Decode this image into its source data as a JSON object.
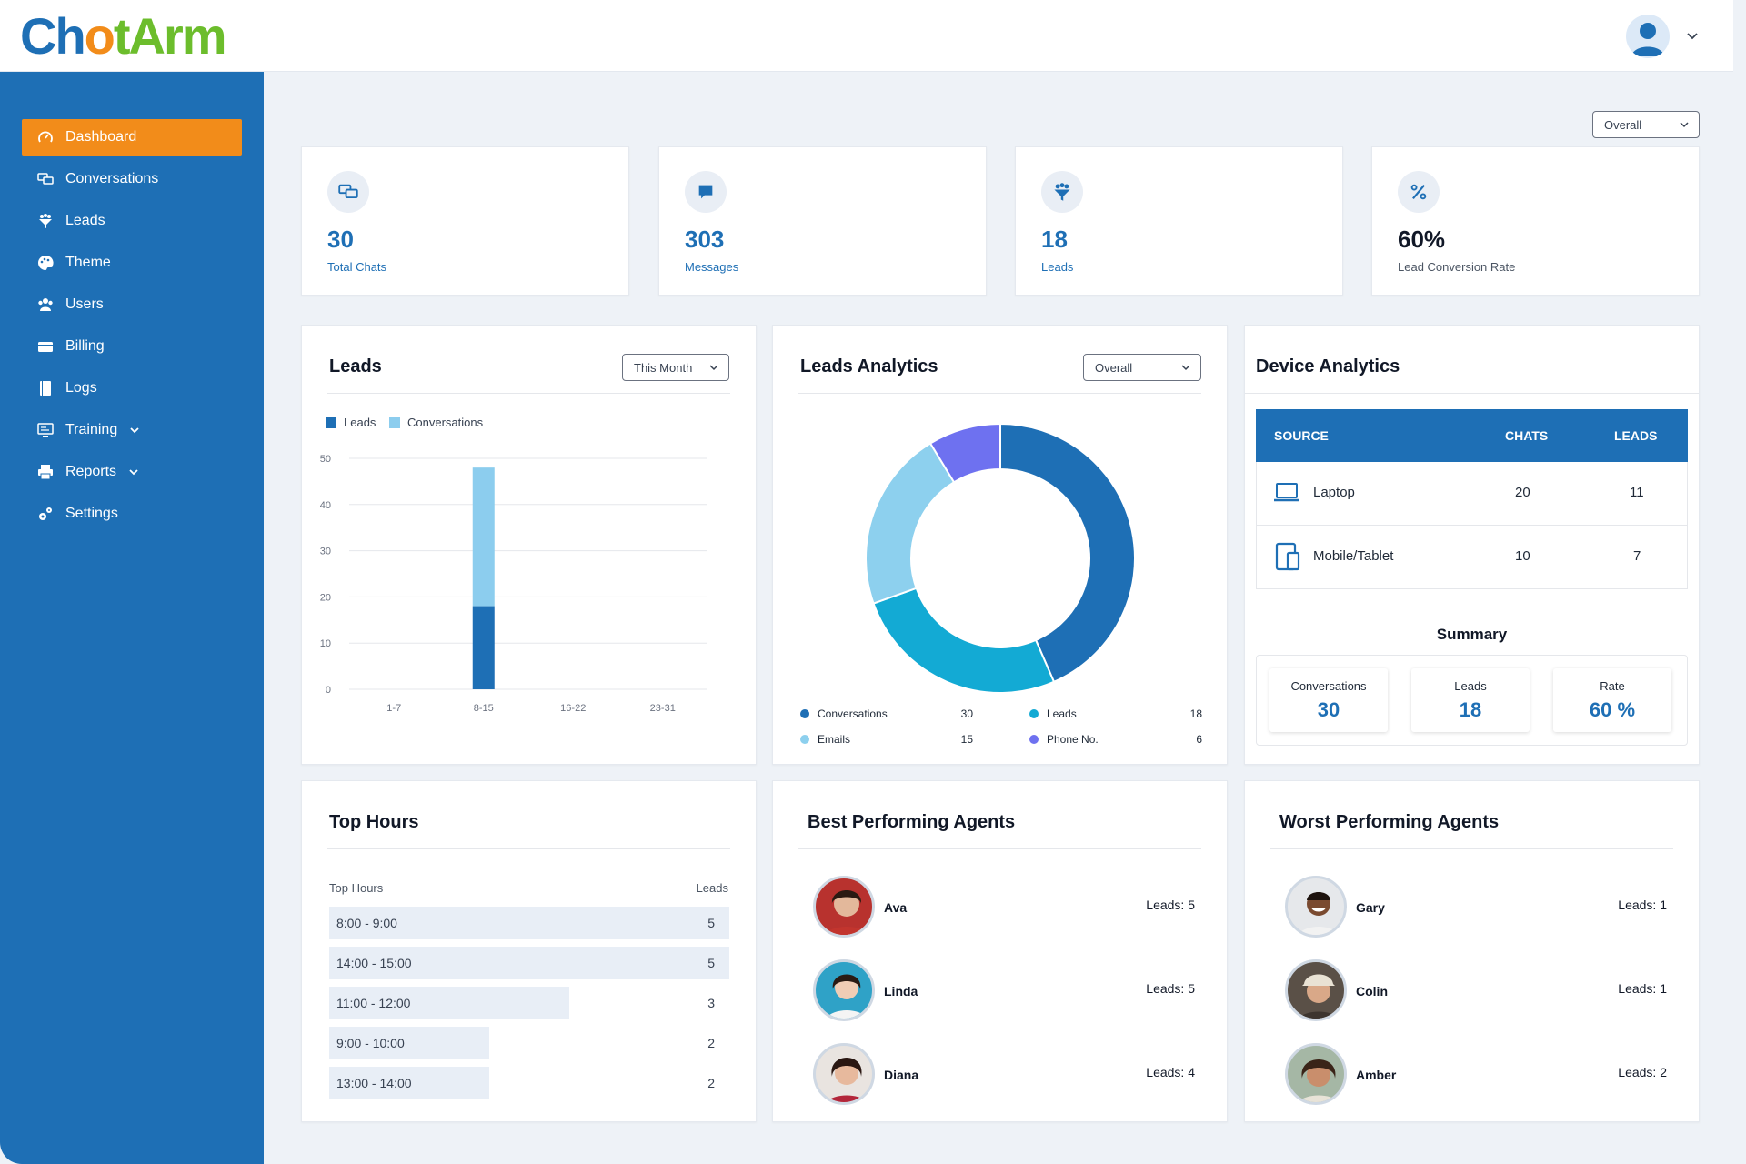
{
  "app": {
    "logo_part1": "Ch",
    "logo_part2": "o",
    "logo_part3": "tArm",
    "brand_color": "#1e6fb5",
    "accent_color": "#f28c1a"
  },
  "sidebar": {
    "items": [
      {
        "label": "Dashboard",
        "icon": "gauge-icon",
        "active": true
      },
      {
        "label": "Conversations",
        "icon": "chat-bubbles-icon"
      },
      {
        "label": "Leads",
        "icon": "funnel-icon"
      },
      {
        "label": "Theme",
        "icon": "palette-icon"
      },
      {
        "label": "Users",
        "icon": "users-icon"
      },
      {
        "label": "Billing",
        "icon": "credit-card-icon"
      },
      {
        "label": "Logs",
        "icon": "book-icon"
      },
      {
        "label": "Training",
        "icon": "monitor-icon",
        "has_submenu": true
      },
      {
        "label": "Reports",
        "icon": "printer-icon",
        "has_submenu": true
      },
      {
        "label": "Settings",
        "icon": "gears-icon"
      }
    ]
  },
  "filters": {
    "overall_top": "Overall",
    "leads_range": "This Month",
    "analytics_range": "Overall"
  },
  "stats": [
    {
      "value": "30",
      "label": "Total Chats",
      "icon": "chat-bubbles-icon"
    },
    {
      "value": "303",
      "label": "Messages",
      "icon": "message-icon"
    },
    {
      "value": "18",
      "label": "Leads",
      "icon": "funnel-icon"
    },
    {
      "value": "60%",
      "label": "Lead Conversion Rate",
      "icon": "percent-icon"
    }
  ],
  "leads_card": {
    "title": "Leads",
    "chart_data": {
      "type": "bar",
      "stacked": true,
      "categories": [
        "1-7",
        "8-15",
        "16-22",
        "23-31"
      ],
      "series": [
        {
          "name": "Leads",
          "values": [
            0,
            18,
            0,
            0
          ],
          "color": "#1e6fb5"
        },
        {
          "name": "Conversations",
          "values": [
            0,
            30,
            0,
            0
          ],
          "color": "#8ccdee"
        }
      ],
      "ylim": [
        0,
        50
      ],
      "yticks": [
        "0",
        "10",
        "20",
        "30",
        "40",
        "50"
      ],
      "grid": true,
      "legend": "top-left"
    }
  },
  "analytics_card": {
    "title": "Leads Analytics",
    "chart_data": {
      "type": "pie",
      "donut": true,
      "series": [
        {
          "name": "Conversations",
          "value": 30,
          "color": "#1e6fb5"
        },
        {
          "name": "Leads",
          "value": 18,
          "color": "#13aad4"
        },
        {
          "name": "Emails",
          "value": 15,
          "color": "#8dd0ee"
        },
        {
          "name": "Phone No.",
          "value": 6,
          "color": "#6e71f0"
        }
      ],
      "legend": "bottom"
    },
    "legend_values": [
      "30",
      "18",
      "15",
      "6"
    ]
  },
  "device_card": {
    "title": "Device Analytics",
    "columns": [
      "SOURCE",
      "CHATS",
      "LEADS"
    ],
    "rows": [
      {
        "source": "Laptop",
        "icon": "laptop-icon",
        "chats": "20",
        "leads": "11"
      },
      {
        "source": "Mobile/Tablet",
        "icon": "tablet-icon",
        "chats": "10",
        "leads": "7"
      }
    ],
    "summary_title": "Summary",
    "summary": [
      {
        "label": "Conversations",
        "value": "30"
      },
      {
        "label": "Leads",
        "value": "18"
      },
      {
        "label": "Rate",
        "value": "60 %"
      }
    ]
  },
  "top_hours": {
    "title": "Top Hours",
    "col_hours": "Top Hours",
    "col_leads": "Leads",
    "rows": [
      {
        "hours": "8:00 - 9:00",
        "leads": 5
      },
      {
        "hours": "14:00 - 15:00",
        "leads": 5
      },
      {
        "hours": "11:00 - 12:00",
        "leads": 3
      },
      {
        "hours": "9:00 - 10:00",
        "leads": 2
      },
      {
        "hours": "13:00 - 14:00",
        "leads": 2
      }
    ],
    "max_leads": 5
  },
  "best_agents": {
    "title": "Best Performing Agents",
    "agents": [
      {
        "name": "Ava",
        "leads": "Leads: 5"
      },
      {
        "name": "Linda",
        "leads": "Leads: 5"
      },
      {
        "name": "Diana",
        "leads": "Leads: 4"
      }
    ]
  },
  "worst_agents": {
    "title": "Worst Performing Agents",
    "agents": [
      {
        "name": "Gary",
        "leads": "Leads: 1"
      },
      {
        "name": "Colin",
        "leads": "Leads: 1"
      },
      {
        "name": "Amber",
        "leads": "Leads: 2"
      }
    ]
  }
}
